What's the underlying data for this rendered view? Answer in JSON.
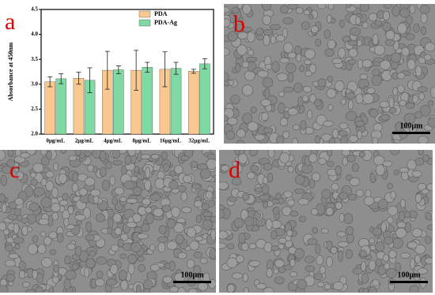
{
  "chart_data": {
    "type": "bar",
    "panel_label": "a",
    "ylabel": "Absorbance at 450nm",
    "categories": [
      "0μg/mL",
      "2μg/mL",
      "4μg/mL",
      "8μg/mL",
      "16μg/mL",
      "32μg/mL"
    ],
    "series": [
      {
        "name": "PDA",
        "color": "#f9c88f",
        "values": [
          3.05,
          3.12,
          3.28,
          3.28,
          3.3,
          3.26
        ],
        "errors": [
          0.1,
          0.12,
          0.38,
          0.4,
          0.35,
          0.04
        ]
      },
      {
        "name": "PDA-Ag",
        "color": "#7fd9a2",
        "values": [
          3.11,
          3.08,
          3.29,
          3.34,
          3.32,
          3.41
        ],
        "errors": [
          0.1,
          0.25,
          0.08,
          0.1,
          0.12,
          0.1
        ]
      }
    ],
    "ylim": [
      2.0,
      4.5
    ],
    "yticks": [
      {
        "value": 2,
        "label": "2.0"
      },
      2.5,
      {
        "value": 3,
        "label": "3.0"
      },
      3.5,
      {
        "value": 4,
        "label": "4.0"
      },
      4.5
    ],
    "legend": "upper right"
  },
  "images": [
    {
      "label": "b",
      "scale_bar": "100μm"
    },
    {
      "label": "c",
      "scale_bar": "100μm"
    },
    {
      "label": "d",
      "scale_bar": "100μm"
    }
  ]
}
